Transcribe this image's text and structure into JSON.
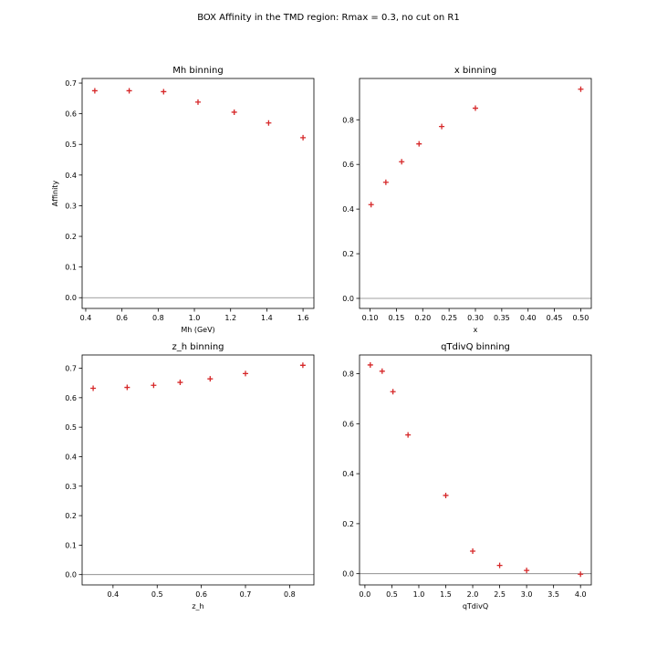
{
  "figure_title": "BOX Affinity in the TMD region: Rmax = 0.3, no cut on R1",
  "chart_data": [
    {
      "type": "scatter",
      "title": "Mh binning",
      "xlabel": "Mh (GeV)",
      "ylabel": "Affinity",
      "xlim": [
        0.38,
        1.66
      ],
      "ylim": [
        -0.035,
        0.715
      ],
      "xticks": [
        0.4,
        0.6,
        0.8,
        1.0,
        1.2,
        1.4,
        1.6
      ],
      "xtick_labels": [
        "0.4",
        "0.6",
        "0.8",
        "1.0",
        "1.2",
        "1.4",
        "1.6"
      ],
      "yticks": [
        0.0,
        0.1,
        0.2,
        0.3,
        0.4,
        0.5,
        0.6,
        0.7
      ],
      "ytick_labels": [
        "0.0",
        "0.1",
        "0.2",
        "0.3",
        "0.4",
        "0.5",
        "0.6",
        "0.7"
      ],
      "marker_color": "#d62728",
      "hline": 0,
      "series": [
        {
          "x": [
            0.45,
            0.64,
            0.83,
            1.02,
            1.22,
            1.41,
            1.6
          ],
          "y": [
            0.675,
            0.675,
            0.672,
            0.638,
            0.605,
            0.57,
            0.522
          ]
        }
      ]
    },
    {
      "type": "scatter",
      "title": "x binning",
      "xlabel": "x",
      "ylabel": "",
      "xlim": [
        0.08,
        0.52
      ],
      "ylim": [
        -0.045,
        0.985
      ],
      "xticks": [
        0.1,
        0.15,
        0.2,
        0.25,
        0.3,
        0.35,
        0.4,
        0.45,
        0.5
      ],
      "xtick_labels": [
        "0.10",
        "0.15",
        "0.20",
        "0.25",
        "0.30",
        "0.35",
        "0.40",
        "0.45",
        "0.50"
      ],
      "yticks": [
        0.0,
        0.2,
        0.4,
        0.6,
        0.8
      ],
      "ytick_labels": [
        "0.0",
        "0.2",
        "0.4",
        "0.6",
        "0.8"
      ],
      "marker_color": "#d62728",
      "hline": 0,
      "series": [
        {
          "x": [
            0.102,
            0.13,
            0.16,
            0.193,
            0.236,
            0.3,
            0.5
          ],
          "y": [
            0.42,
            0.52,
            0.612,
            0.692,
            0.77,
            0.852,
            0.937
          ]
        }
      ]
    },
    {
      "type": "scatter",
      "title": "z_h binning",
      "xlabel": "z_h",
      "ylabel": "",
      "xlim": [
        0.33,
        0.855
      ],
      "ylim": [
        -0.035,
        0.745
      ],
      "xticks": [
        0.4,
        0.5,
        0.6,
        0.7,
        0.8
      ],
      "xtick_labels": [
        "0.4",
        "0.5",
        "0.6",
        "0.7",
        "0.8"
      ],
      "yticks": [
        0.0,
        0.1,
        0.2,
        0.3,
        0.4,
        0.5,
        0.6,
        0.7
      ],
      "ytick_labels": [
        "0.0",
        "0.1",
        "0.2",
        "0.3",
        "0.4",
        "0.5",
        "0.6",
        "0.7"
      ],
      "marker_color": "#d62728",
      "hline": 0,
      "series": [
        {
          "x": [
            0.355,
            0.432,
            0.492,
            0.552,
            0.62,
            0.7,
            0.83
          ],
          "y": [
            0.632,
            0.635,
            0.642,
            0.652,
            0.664,
            0.682,
            0.71
          ]
        }
      ]
    },
    {
      "type": "scatter",
      "title": "qTdivQ binning",
      "xlabel": "qTdivQ",
      "ylabel": "",
      "xlim": [
        -0.1,
        4.2
      ],
      "ylim": [
        -0.045,
        0.875
      ],
      "xticks": [
        0.0,
        0.5,
        1.0,
        1.5,
        2.0,
        2.5,
        3.0,
        3.5,
        4.0
      ],
      "xtick_labels": [
        "0.0",
        "0.5",
        "1.0",
        "1.5",
        "2.0",
        "2.5",
        "3.0",
        "3.5",
        "4.0"
      ],
      "yticks": [
        0.0,
        0.2,
        0.4,
        0.6,
        0.8
      ],
      "ytick_labels": [
        "0.0",
        "0.2",
        "0.4",
        "0.6",
        "0.8"
      ],
      "marker_color": "#d62728",
      "hline": 0,
      "series": [
        {
          "x": [
            0.1,
            0.32,
            0.52,
            0.8,
            1.5,
            2.0,
            2.5,
            3.0,
            4.0
          ],
          "y": [
            0.835,
            0.81,
            0.728,
            0.555,
            0.313,
            0.09,
            0.033,
            0.013,
            -0.002
          ]
        }
      ]
    }
  ]
}
